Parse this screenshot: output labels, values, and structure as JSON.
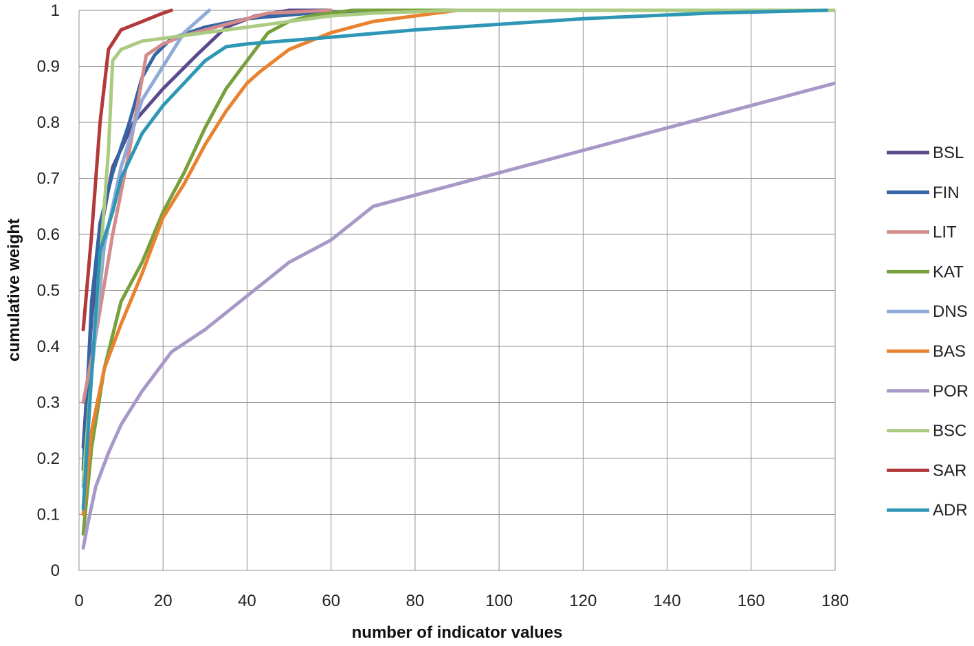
{
  "chart_data": {
    "type": "line",
    "title": "",
    "xlabel": "number of indicator values",
    "ylabel": "cumulative weight",
    "xlim": [
      0,
      180
    ],
    "ylim": [
      0,
      1
    ],
    "x_ticks": [
      "0",
      "20",
      "40",
      "60",
      "80",
      "100",
      "120",
      "140",
      "160",
      "180"
    ],
    "y_ticks": [
      "0",
      "0.1",
      "0.2",
      "0.3",
      "0.4",
      "0.5",
      "0.6",
      "0.7",
      "0.8",
      "0.9",
      "1"
    ],
    "grid": true,
    "legend_position": "right",
    "series": [
      {
        "name": "BSL",
        "color": "#5b4a8b",
        "points": [
          [
            1,
            0.22
          ],
          [
            3,
            0.45
          ],
          [
            5,
            0.6
          ],
          [
            8,
            0.72
          ],
          [
            13,
            0.8
          ],
          [
            20,
            0.86
          ],
          [
            28,
            0.92
          ],
          [
            35,
            0.97
          ],
          [
            42,
            0.99
          ],
          [
            50,
            1.0
          ],
          [
            60,
            1.0
          ]
        ]
      },
      {
        "name": "FIN",
        "color": "#3465a4",
        "points": [
          [
            1,
            0.18
          ],
          [
            3,
            0.48
          ],
          [
            5,
            0.62
          ],
          [
            8,
            0.71
          ],
          [
            12,
            0.8
          ],
          [
            15,
            0.88
          ],
          [
            18,
            0.92
          ],
          [
            22,
            0.95
          ],
          [
            30,
            0.97
          ],
          [
            40,
            0.985
          ],
          [
            55,
            0.995
          ],
          [
            70,
            1.0
          ],
          [
            180,
            1.0
          ]
        ]
      },
      {
        "name": "LIT",
        "color": "#d38b8b",
        "points": [
          [
            1,
            0.3
          ],
          [
            4,
            0.42
          ],
          [
            8,
            0.6
          ],
          [
            12,
            0.75
          ],
          [
            16,
            0.92
          ],
          [
            20,
            0.94
          ],
          [
            25,
            0.955
          ],
          [
            35,
            0.975
          ],
          [
            45,
            0.995
          ],
          [
            60,
            1.0
          ]
        ]
      },
      {
        "name": "KAT",
        "color": "#77a03c",
        "points": [
          [
            1,
            0.065
          ],
          [
            3,
            0.22
          ],
          [
            6,
            0.36
          ],
          [
            10,
            0.48
          ],
          [
            15,
            0.55
          ],
          [
            20,
            0.64
          ],
          [
            25,
            0.71
          ],
          [
            30,
            0.79
          ],
          [
            35,
            0.86
          ],
          [
            40,
            0.91
          ],
          [
            45,
            0.96
          ],
          [
            50,
            0.98
          ],
          [
            55,
            0.99
          ],
          [
            65,
            1.0
          ],
          [
            180,
            1.0
          ]
        ]
      },
      {
        "name": "DNS",
        "color": "#8faad6",
        "points": [
          [
            1,
            0.15
          ],
          [
            3,
            0.35
          ],
          [
            6,
            0.58
          ],
          [
            10,
            0.72
          ],
          [
            15,
            0.84
          ],
          [
            20,
            0.9
          ],
          [
            25,
            0.96
          ],
          [
            28,
            0.98
          ],
          [
            31,
            1.0
          ]
        ]
      },
      {
        "name": "BAS",
        "color": "#e8822f",
        "points": [
          [
            1,
            0.1
          ],
          [
            3,
            0.25
          ],
          [
            6,
            0.36
          ],
          [
            10,
            0.44
          ],
          [
            15,
            0.53
          ],
          [
            20,
            0.63
          ],
          [
            25,
            0.69
          ],
          [
            30,
            0.76
          ],
          [
            35,
            0.82
          ],
          [
            40,
            0.87
          ],
          [
            43,
            0.89
          ],
          [
            50,
            0.93
          ],
          [
            60,
            0.96
          ],
          [
            70,
            0.98
          ],
          [
            80,
            0.99
          ],
          [
            90,
            1.0
          ],
          [
            100,
            1.0
          ]
        ]
      },
      {
        "name": "POR",
        "color": "#a898c8",
        "points": [
          [
            1,
            0.04
          ],
          [
            2,
            0.08
          ],
          [
            4,
            0.15
          ],
          [
            7,
            0.21
          ],
          [
            10,
            0.26
          ],
          [
            15,
            0.32
          ],
          [
            20,
            0.37
          ],
          [
            22,
            0.39
          ],
          [
            30,
            0.43
          ],
          [
            40,
            0.49
          ],
          [
            50,
            0.55
          ],
          [
            60,
            0.59
          ],
          [
            70,
            0.65
          ],
          [
            80,
            0.67
          ],
          [
            100,
            0.71
          ],
          [
            120,
            0.75
          ],
          [
            140,
            0.79
          ],
          [
            160,
            0.83
          ],
          [
            180,
            0.87
          ]
        ]
      },
      {
        "name": "BSC",
        "color": "#abcb82",
        "points": [
          [
            1,
            0.16
          ],
          [
            3,
            0.35
          ],
          [
            5,
            0.55
          ],
          [
            7,
            0.75
          ],
          [
            8,
            0.91
          ],
          [
            10,
            0.93
          ],
          [
            15,
            0.945
          ],
          [
            20,
            0.95
          ],
          [
            30,
            0.96
          ],
          [
            40,
            0.97
          ],
          [
            50,
            0.98
          ],
          [
            60,
            0.99
          ],
          [
            70,
            0.995
          ],
          [
            90,
            1.0
          ],
          [
            180,
            1.0
          ]
        ]
      },
      {
        "name": "SAR",
        "color": "#b33a3a",
        "points": [
          [
            1,
            0.43
          ],
          [
            3,
            0.6
          ],
          [
            5,
            0.8
          ],
          [
            7,
            0.93
          ],
          [
            10,
            0.965
          ],
          [
            15,
            0.98
          ],
          [
            20,
            0.995
          ],
          [
            22,
            1.0
          ]
        ]
      },
      {
        "name": "ADR",
        "color": "#2e97b5",
        "points": [
          [
            1,
            0.11
          ],
          [
            3,
            0.35
          ],
          [
            5,
            0.57
          ],
          [
            8,
            0.64
          ],
          [
            10,
            0.7
          ],
          [
            15,
            0.78
          ],
          [
            20,
            0.83
          ],
          [
            25,
            0.87
          ],
          [
            30,
            0.91
          ],
          [
            35,
            0.935
          ],
          [
            40,
            0.94
          ],
          [
            60,
            0.952
          ],
          [
            80,
            0.965
          ],
          [
            100,
            0.975
          ],
          [
            120,
            0.985
          ],
          [
            150,
            0.995
          ],
          [
            178,
            1.0
          ]
        ]
      }
    ]
  }
}
